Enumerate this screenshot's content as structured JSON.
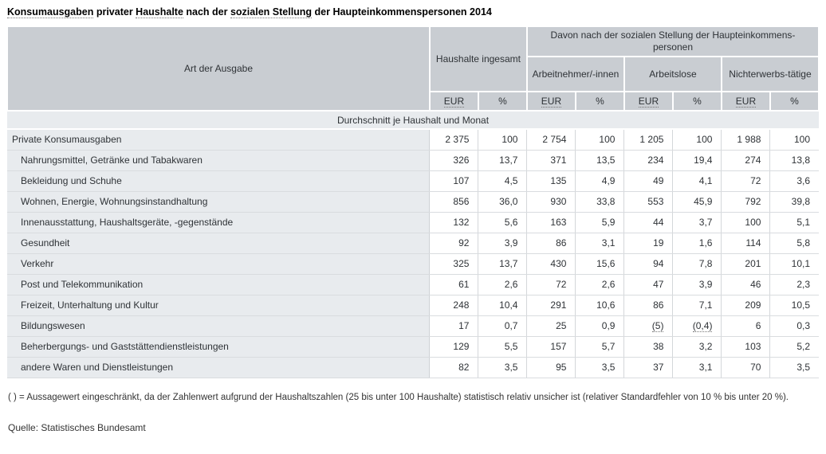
{
  "page": {
    "title_parts": {
      "t1": "Konsumausgaben",
      "t2": " privater ",
      "t3": "Haushalte",
      "t4": " nach der ",
      "t5": "sozialen Stellung",
      "t6": " der Haupteinkommenspersonen 2014"
    }
  },
  "table": {
    "header": {
      "row_label": "Art der Ausgabe",
      "group_total": "Haushalte ingesamt",
      "group_breakdown": "Davon nach der sozialen Stellung der Haupteinkommens-personen",
      "subgroups": [
        "Arbeitnehmer/-innen",
        "Arbeitslose",
        "Nichterwerbs-tätige"
      ],
      "unit_eur": "EUR",
      "unit_pct": "%"
    },
    "subheader": "Durchschnitt je Haushalt und Monat"
  },
  "chart_data": {
    "type": "table",
    "title": "Konsumausgaben privater Haushalte nach der sozialen Stellung der Haupteinkommenspersonen 2014",
    "unit_note": "Durchschnitt je Haushalt und Monat",
    "column_groups": [
      "Haushalte ingesamt",
      "Arbeitnehmer/-innen",
      "Arbeitslose",
      "Nichterwerbstätige"
    ],
    "columns": [
      "EUR",
      "%",
      "EUR",
      "%",
      "EUR",
      "%",
      "EUR",
      "%"
    ],
    "rows": [
      {
        "label": "Private Konsumausgaben",
        "indent": false,
        "values": [
          "2 375",
          "100",
          "2 754",
          "100",
          "1 205",
          "100",
          "1 988",
          "100"
        ]
      },
      {
        "label": "Nahrungsmittel, Getränke und Tabakwaren",
        "indent": true,
        "values": [
          "326",
          "13,7",
          "371",
          "13,5",
          "234",
          "19,4",
          "274",
          "13,8"
        ]
      },
      {
        "label": "Bekleidung und Schuhe",
        "indent": true,
        "values": [
          "107",
          "4,5",
          "135",
          "4,9",
          "49",
          "4,1",
          "72",
          "3,6"
        ]
      },
      {
        "label": "Wohnen, Energie, Wohnungsinstandhaltung",
        "indent": true,
        "values": [
          "856",
          "36,0",
          "930",
          "33,8",
          "553",
          "45,9",
          "792",
          "39,8"
        ]
      },
      {
        "label": "Innenausstattung, Haushaltsgeräte, -gegenstände",
        "indent": true,
        "values": [
          "132",
          "5,6",
          "163",
          "5,9",
          "44",
          "3,7",
          "100",
          "5,1"
        ]
      },
      {
        "label": "Gesundheit",
        "indent": true,
        "values": [
          "92",
          "3,9",
          "86",
          "3,1",
          "19",
          "1,6",
          "114",
          "5,8"
        ]
      },
      {
        "label": "Verkehr",
        "indent": true,
        "values": [
          "325",
          "13,7",
          "430",
          "15,6",
          "94",
          "7,8",
          "201",
          "10,1"
        ]
      },
      {
        "label": "Post und Telekommunikation",
        "indent": true,
        "values": [
          "61",
          "2,6",
          "72",
          "2,6",
          "47",
          "3,9",
          "46",
          "2,3"
        ]
      },
      {
        "label": "Freizeit, Unterhaltung und Kultur",
        "indent": true,
        "values": [
          "248",
          "10,4",
          "291",
          "10,6",
          "86",
          "7,1",
          "209",
          "10,5"
        ]
      },
      {
        "label": "Bildungswesen",
        "indent": true,
        "values": [
          "17",
          "0,7",
          "25",
          "0,9",
          "(5)",
          "(0,4)",
          "6",
          "0,3"
        ]
      },
      {
        "label": "Beherbergungs- und Gaststättendienstleistungen",
        "indent": true,
        "values": [
          "129",
          "5,5",
          "157",
          "5,7",
          "38",
          "3,2",
          "103",
          "5,2"
        ]
      },
      {
        "label": "andere Waren und Dienstleistungen",
        "indent": true,
        "values": [
          "82",
          "3,5",
          "95",
          "3,5",
          "37",
          "3,1",
          "70",
          "3,5"
        ]
      }
    ]
  },
  "footnote": "( ) = Aussagewert eingeschränkt, da der Zahlenwert aufgrund der Haushaltszahlen (25 bis unter 100 Haushalte) statistisch relativ unsicher ist (relativer Standardfehler von 10 % bis unter 20 %).",
  "source": "Quelle: Statistisches Bundesamt"
}
